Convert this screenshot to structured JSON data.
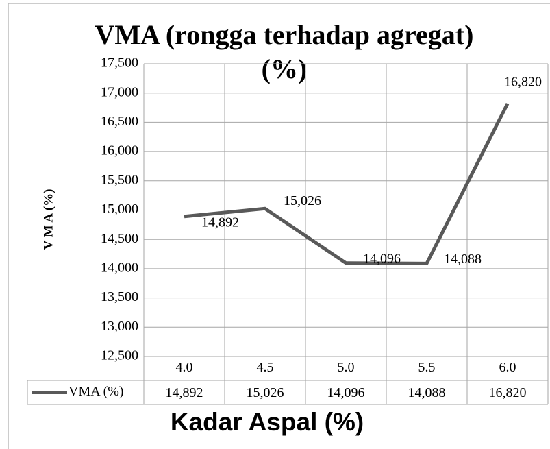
{
  "chart_data": {
    "type": "line",
    "title": "VMA (rongga terhadap agregat) (%)",
    "y_label": "V M A (%)",
    "x_label": "Kadar Aspal (%)",
    "categories": [
      "4.0",
      "4.5",
      "5.0",
      "5.5",
      "6.0"
    ],
    "series": [
      {
        "name": "VMA (%)",
        "color": "#595959",
        "values": [
          14.892,
          15.026,
          14.096,
          14.088,
          16.82
        ],
        "value_labels": [
          "14,892",
          "15,026",
          "14,096",
          "14,088",
          "16,820"
        ]
      }
    ],
    "ylim": [
      12.5,
      17.5
    ],
    "yticks": [
      {
        "value": 12.5,
        "label": "12,500"
      },
      {
        "value": 13,
        "label": "13,000"
      },
      {
        "value": 13.5,
        "label": "13,500"
      },
      {
        "value": 14,
        "label": "14,000"
      },
      {
        "value": 14.5,
        "label": "14,500"
      },
      {
        "value": 15,
        "label": "15,000"
      },
      {
        "value": 15.5,
        "label": "15,500"
      },
      {
        "value": 16,
        "label": "16,000"
      },
      {
        "value": 16.5,
        "label": "16,500"
      },
      {
        "value": 17,
        "label": "17,000"
      },
      {
        "value": 17.5,
        "label": "17,500"
      }
    ],
    "grid": true,
    "data_table": true
  }
}
